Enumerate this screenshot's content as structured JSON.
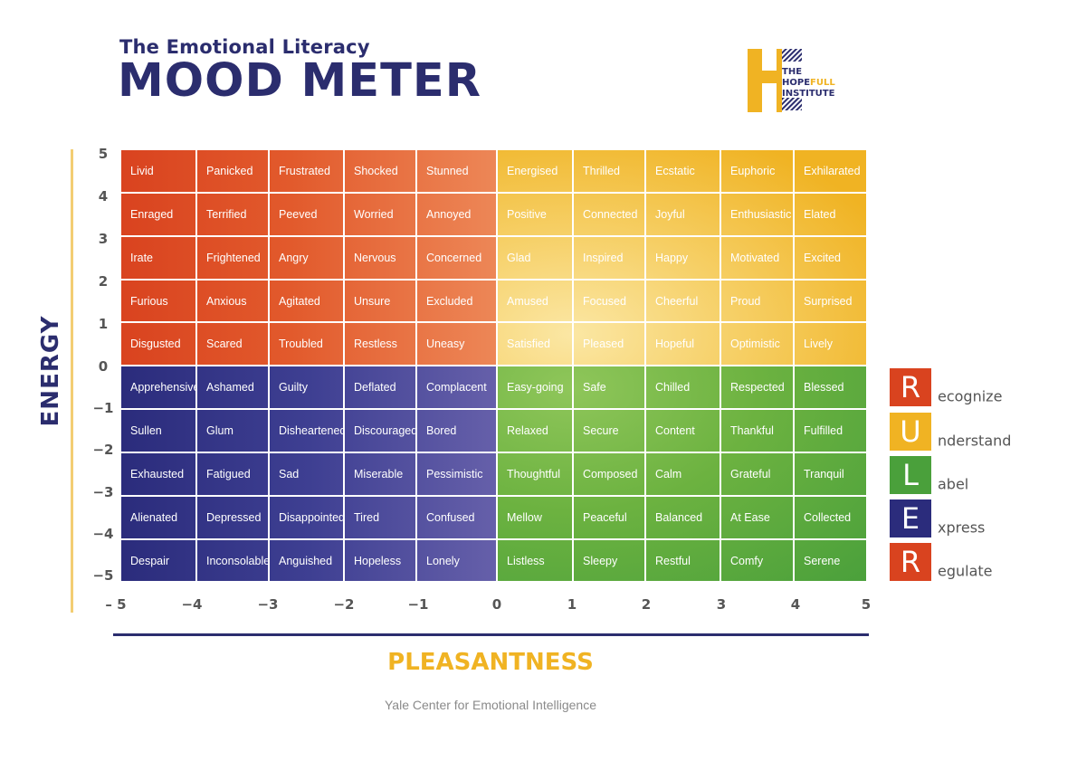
{
  "header": {
    "subtitle": "The Emotional Literacy",
    "title": "MOOD METER"
  },
  "logo": {
    "line1": "THE",
    "line2a": "HOPE",
    "line2b": "FULL",
    "line3": "INSTITUTE"
  },
  "axes": {
    "y_label": "ENERGY",
    "x_label": "PLEASANTNESS",
    "y_ticks": [
      "5",
      "4",
      "3",
      "2",
      "1",
      "0",
      "−1",
      "−2",
      "−3",
      "−4",
      "−5"
    ],
    "x_ticks": [
      "– 5",
      "−4",
      "−3",
      "−2",
      "−1",
      "0",
      "1",
      "2",
      "3",
      "4",
      "5"
    ]
  },
  "colors": {
    "red": "#d9431f",
    "yellow": "#f0b323",
    "blue": "#2b2c7c",
    "green": "#4aa03b",
    "navy": "#2b2d6e"
  },
  "grid": {
    "rows": [
      [
        "Livid",
        "Panicked",
        "Frustrated",
        "Shocked",
        "Stunned",
        "Energised",
        "Thrilled",
        "Ecstatic",
        "Euphoric",
        "Exhilarated"
      ],
      [
        "Enraged",
        "Terrified",
        "Peeved",
        "Worried",
        "Annoyed",
        "Positive",
        "Connected",
        "Joyful",
        "Enthusiastic",
        "Elated"
      ],
      [
        "Irate",
        "Frightened",
        "Angry",
        "Nervous",
        "Concerned",
        "Glad",
        "Inspired",
        "Happy",
        "Motivated",
        "Excited"
      ],
      [
        "Furious",
        "Anxious",
        "Agitated",
        "Unsure",
        "Excluded",
        "Amused",
        "Focused",
        "Cheerful",
        "Proud",
        "Surprised"
      ],
      [
        "Disgusted",
        "Scared",
        "Troubled",
        "Restless",
        "Uneasy",
        "Satisfied",
        "Pleased",
        "Hopeful",
        "Optimistic",
        "Lively"
      ],
      [
        "Apprehensive",
        "Ashamed",
        "Guilty",
        "Deflated",
        "Complacent",
        "Easy-going",
        "Safe",
        "Chilled",
        "Respected",
        "Blessed"
      ],
      [
        "Sullen",
        "Glum",
        "Disheartened",
        "Discouraged",
        "Bored",
        "Relaxed",
        "Secure",
        "Content",
        "Thankful",
        "Fulfilled"
      ],
      [
        "Exhausted",
        "Fatigued",
        "Sad",
        "Miserable",
        "Pessimistic",
        "Thoughtful",
        "Composed",
        "Calm",
        "Grateful",
        "Tranquil"
      ],
      [
        "Alienated",
        "Depressed",
        "Disappointed",
        "Tired",
        "Confused",
        "Mellow",
        "Peaceful",
        "Balanced",
        "At Ease",
        "Collected"
      ],
      [
        "Despair",
        "Inconsolable",
        "Anguished",
        "Hopeless",
        "Lonely",
        "Listless",
        "Sleepy",
        "Restful",
        "Comfy",
        "Serene"
      ]
    ]
  },
  "ruler": [
    {
      "letter": "R",
      "rest": "ecognize",
      "color": "#d9431f"
    },
    {
      "letter": "U",
      "rest": "nderstand",
      "color": "#f0b323"
    },
    {
      "letter": "L",
      "rest": "abel",
      "color": "#4aa03b"
    },
    {
      "letter": "E",
      "rest": "xpress",
      "color": "#2b2c7c"
    },
    {
      "letter": "R",
      "rest": "egulate",
      "color": "#d9431f"
    }
  ],
  "footer": {
    "source": "Yale Center for Emotional Intelligence"
  }
}
